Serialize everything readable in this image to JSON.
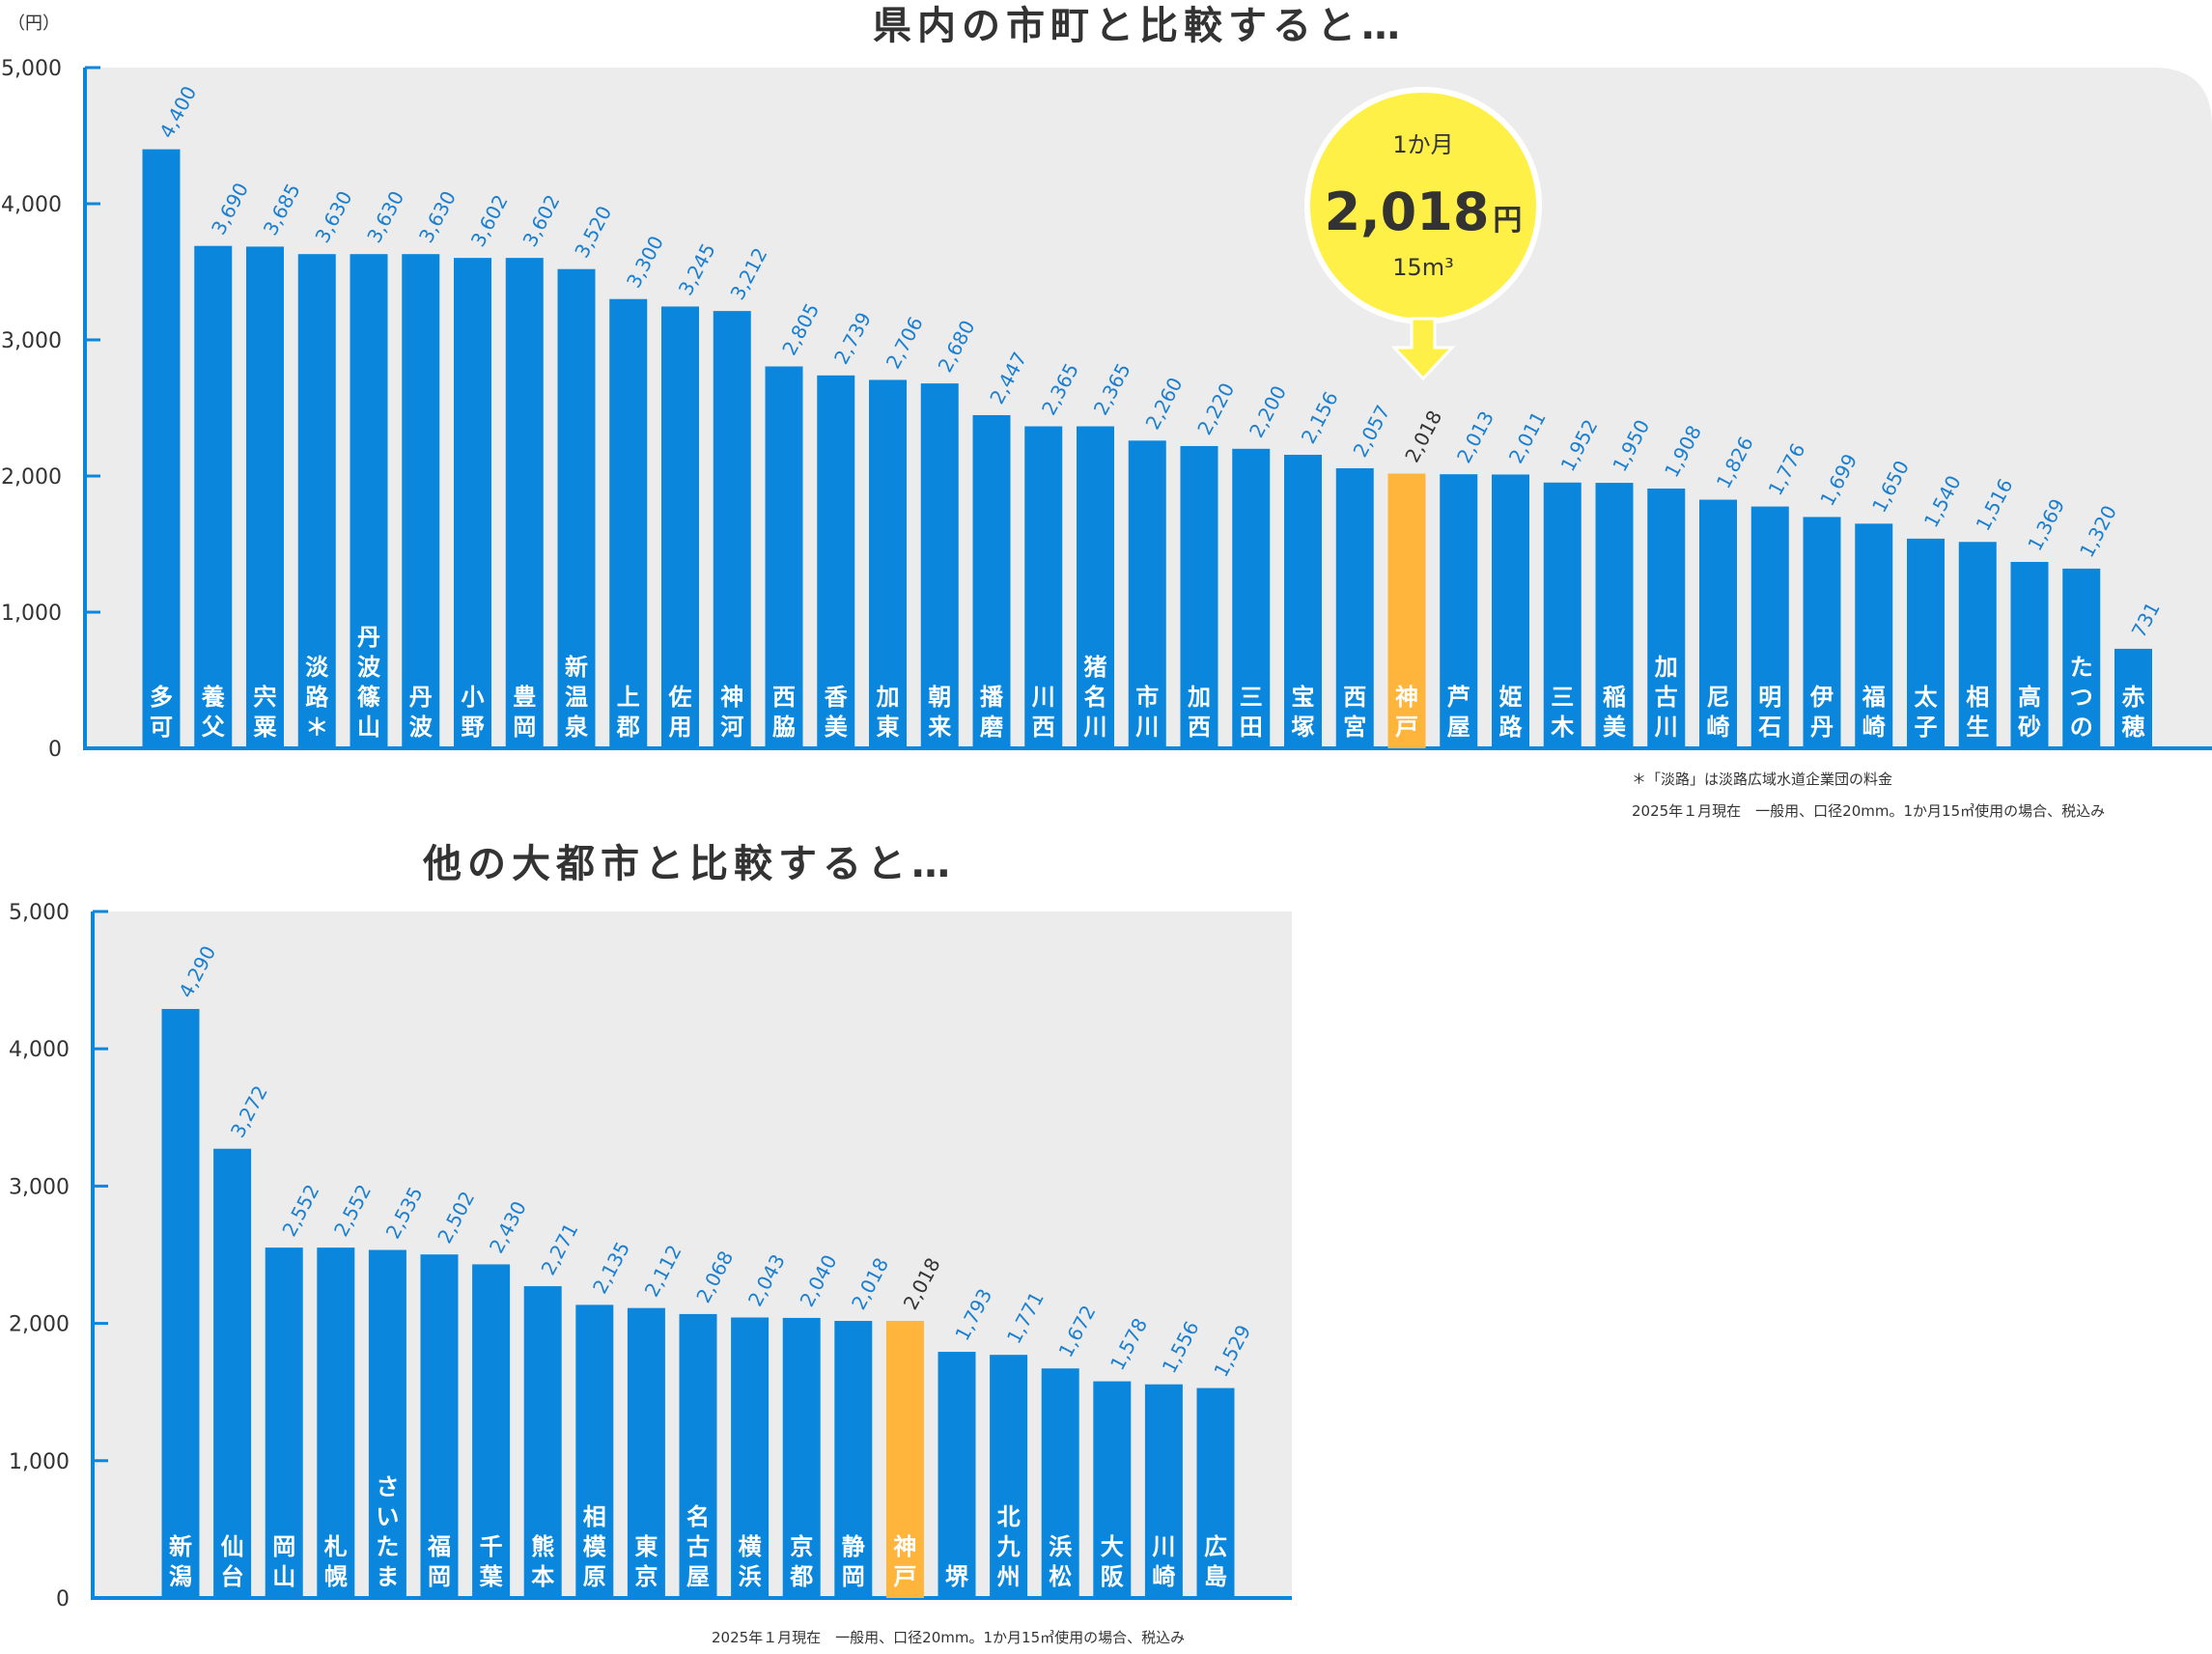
{
  "colors": {
    "bar": "#0a87dc",
    "highlight": "#ffb43c",
    "axis": "#0a87dc",
    "panel": "#ececec",
    "value_label": "#1a7fd0",
    "callout": "#fff047"
  },
  "unit_label": "（円）",
  "callout": {
    "line1": "1か月",
    "amount": "2,018",
    "amount_unit": "円",
    "line3": "15m³"
  },
  "chart_data": [
    {
      "type": "bar",
      "title": "県内の市町と比較すると…",
      "ylim": [
        0,
        5000
      ],
      "yticks": [
        "0",
        "1,000",
        "2,000",
        "3,000",
        "4,000",
        "5,000"
      ],
      "categories": [
        "多可",
        "養父",
        "宍粟",
        "淡路＊",
        "丹波篠山",
        "丹波",
        "小野",
        "豊岡",
        "新温泉",
        "上郡",
        "佐用",
        "神河",
        "西脇",
        "香美",
        "加東",
        "朝来",
        "播磨",
        "川西",
        "猪名川",
        "市川",
        "加西",
        "三田",
        "宝塚",
        "西宮",
        "神戸",
        "芦屋",
        "姫路",
        "三木",
        "稲美",
        "加古川",
        "尼崎",
        "明石",
        "伊丹",
        "福崎",
        "太子",
        "相生",
        "高砂",
        "たつの",
        "赤穂"
      ],
      "values": [
        4400,
        3690,
        3685,
        3630,
        3630,
        3630,
        3602,
        3602,
        3520,
        3300,
        3245,
        3212,
        2805,
        2739,
        2706,
        2680,
        2447,
        2365,
        2365,
        2260,
        2220,
        2200,
        2156,
        2057,
        2018,
        2013,
        2011,
        1952,
        1950,
        1908,
        1826,
        1776,
        1699,
        1650,
        1540,
        1516,
        1369,
        1320,
        731
      ],
      "value_labels": [
        "4,400",
        "3,690",
        "3,685",
        "3,630",
        "3,630",
        "3,630",
        "3,602",
        "3,602",
        "3,520",
        "3,300",
        "3,245",
        "3,212",
        "2,805",
        "2,739",
        "2,706",
        "2,680",
        "2,447",
        "2,365",
        "2,365",
        "2,260",
        "2,220",
        "2,200",
        "2,156",
        "2,057",
        "2,018",
        "2,013",
        "2,011",
        "1,952",
        "1,950",
        "1,908",
        "1,826",
        "1,776",
        "1,699",
        "1,650",
        "1,540",
        "1,516",
        "1,369",
        "1,320",
        "731"
      ],
      "highlight": "神戸",
      "notes": [
        "＊「淡路」は淡路広域水道企業団の料金",
        "2025年１月現在　一般用、口径20mm。1か月15㎥使用の場合、税込み"
      ]
    },
    {
      "type": "bar",
      "title": "他の大都市と比較すると…",
      "ylim": [
        0,
        5000
      ],
      "yticks": [
        "0",
        "1,000",
        "2,000",
        "3,000",
        "4,000",
        "5,000"
      ],
      "categories": [
        "新潟",
        "仙台",
        "岡山",
        "札幌",
        "さいたま",
        "福岡",
        "千葉",
        "熊本",
        "相模原",
        "東京",
        "名古屋",
        "横浜",
        "京都",
        "静岡",
        "神戸",
        "堺",
        "北九州",
        "浜松",
        "大阪",
        "川崎",
        "広島"
      ],
      "values": [
        4290,
        3272,
        2552,
        2552,
        2535,
        2502,
        2430,
        2271,
        2135,
        2112,
        2068,
        2043,
        2040,
        2018,
        2018,
        1793,
        1771,
        1672,
        1578,
        1556,
        1529
      ],
      "value_labels": [
        "4,290",
        "3,272",
        "2,552",
        "2,552",
        "2,535",
        "2,502",
        "2,430",
        "2,271",
        "2,135",
        "2,112",
        "2,068",
        "2,043",
        "2,040",
        "2,018",
        "2,018",
        "1,793",
        "1,771",
        "1,672",
        "1,578",
        "1,556",
        "1,529"
      ],
      "highlight": "神戸",
      "notes": [
        "2025年１月現在　一般用、口径20mm。1か月15㎥使用の場合、税込み"
      ]
    }
  ]
}
